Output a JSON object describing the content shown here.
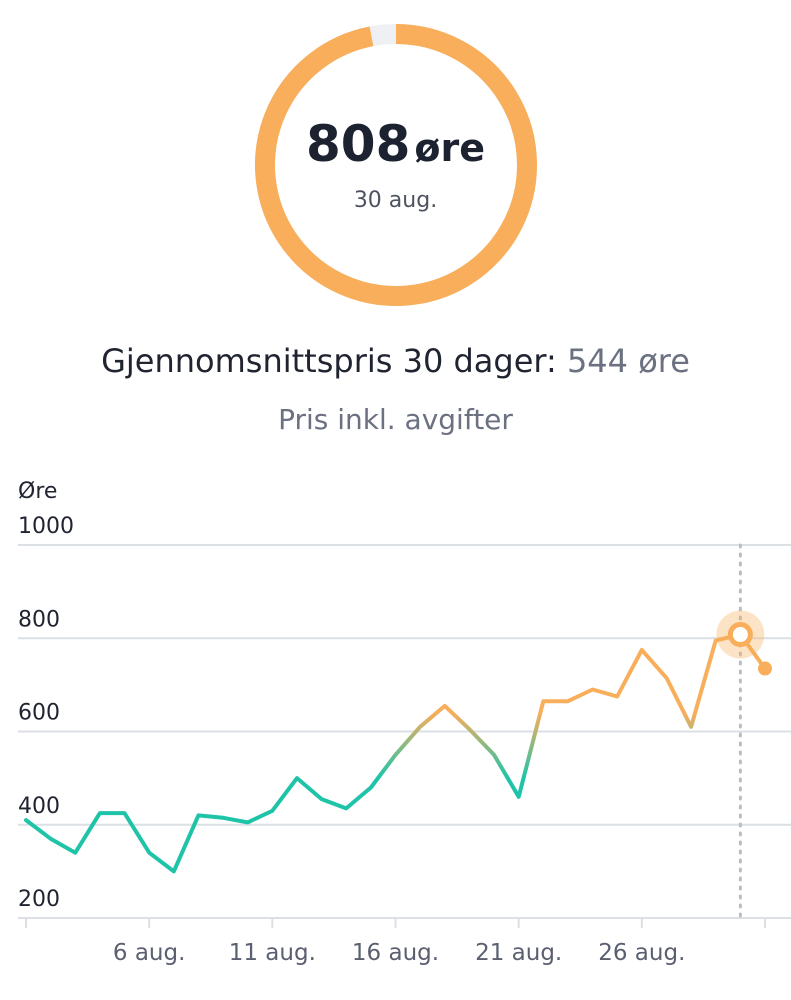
{
  "current": {
    "value": "808",
    "unit": "øre",
    "date": "30 aug.",
    "gauge_fraction": 0.97
  },
  "average": {
    "label": "Gjennomsnittspris 30 dager:",
    "value": "544 øre"
  },
  "subtitle": "Pris inkl. avgifter",
  "colors": {
    "high": "#f8ae5a",
    "low": "#1fc4a8",
    "gauge_track": "#eef0f3",
    "grid": "#dcdfe4",
    "axis_text": "#1f2430",
    "tick_text": "#5b6070"
  },
  "chart_data": {
    "type": "line",
    "ylabel": "Øre",
    "ylim": [
      200,
      1000
    ],
    "yticks": [
      200,
      400,
      600,
      800,
      1000
    ],
    "xlim": [
      1,
      31
    ],
    "xticks": [
      1,
      6,
      11,
      16,
      21,
      26,
      31
    ],
    "xtick_labels": [
      "",
      "6 aug.",
      "11 aug.",
      "16 aug.",
      "21 aug.",
      "26 aug.",
      ""
    ],
    "grid": true,
    "highlight_day": 30,
    "series": [
      {
        "x": [
          1,
          2,
          3,
          4,
          5,
          6,
          7,
          8,
          9,
          10,
          11,
          12,
          13,
          14,
          15,
          16,
          17,
          18,
          19,
          20,
          21,
          22,
          23,
          24,
          25,
          26,
          27,
          28,
          29,
          30,
          31
        ],
        "values": [
          410,
          370,
          340,
          425,
          425,
          340,
          300,
          420,
          415,
          405,
          430,
          500,
          455,
          435,
          480,
          550,
          610,
          655,
          605,
          550,
          460,
          665,
          665,
          690,
          675,
          775,
          715,
          610,
          795,
          808,
          735
        ]
      }
    ]
  }
}
